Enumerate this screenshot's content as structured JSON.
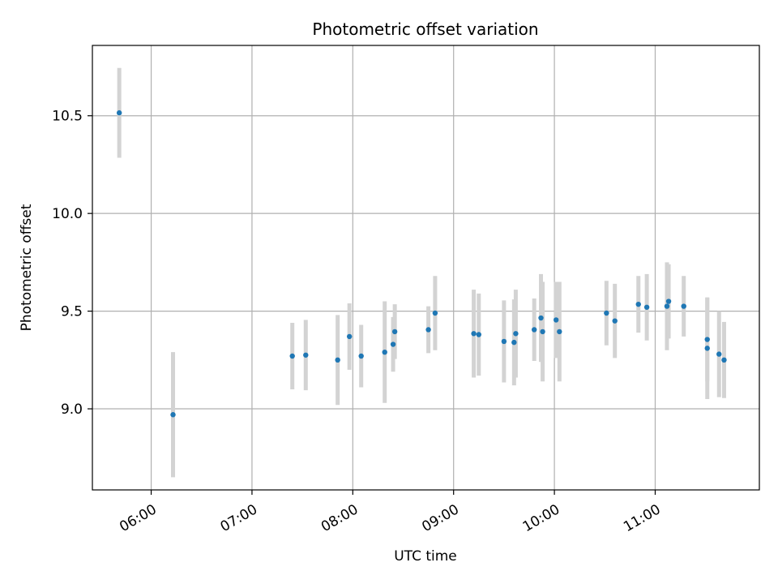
{
  "chart_data": {
    "type": "scatter",
    "title": "Photometric offset variation",
    "xlabel": "UTC time",
    "ylabel": "Photometric offset",
    "x_axis": {
      "type": "time",
      "min": "05:25",
      "max": "12:02",
      "ticks": [
        "06:00",
        "07:00",
        "08:00",
        "09:00",
        "10:00",
        "11:00"
      ]
    },
    "y_axis": {
      "min": 8.585,
      "max": 10.86,
      "ticks": [
        9.0,
        9.5,
        10.0,
        10.5
      ],
      "tick_labels": [
        "9.0",
        "9.5",
        "10.0",
        "10.5"
      ]
    },
    "grid": true,
    "marker_color": "#1f77b4",
    "errorbar_color": "#d3d3d3",
    "points": [
      {
        "x": "05:41",
        "y": 10.515,
        "err": 0.23
      },
      {
        "x": "06:13",
        "y": 8.97,
        "err": 0.32
      },
      {
        "x": "07:24",
        "y": 9.27,
        "err": 0.17
      },
      {
        "x": "07:32",
        "y": 9.275,
        "err": 0.18
      },
      {
        "x": "07:51",
        "y": 9.25,
        "err": 0.23
      },
      {
        "x": "07:58",
        "y": 9.37,
        "err": 0.17
      },
      {
        "x": "08:05",
        "y": 9.27,
        "err": 0.16
      },
      {
        "x": "08:19",
        "y": 9.29,
        "err": 0.26
      },
      {
        "x": "08:24",
        "y": 9.33,
        "err": 0.14
      },
      {
        "x": "08:25",
        "y": 9.395,
        "err": 0.14
      },
      {
        "x": "08:45",
        "y": 9.405,
        "err": 0.12
      },
      {
        "x": "08:49",
        "y": 9.49,
        "err": 0.19
      },
      {
        "x": "09:12",
        "y": 9.385,
        "err": 0.225
      },
      {
        "x": "09:15",
        "y": 9.38,
        "err": 0.21
      },
      {
        "x": "09:30",
        "y": 9.345,
        "err": 0.21
      },
      {
        "x": "09:36",
        "y": 9.34,
        "err": 0.22
      },
      {
        "x": "09:37",
        "y": 9.385,
        "err": 0.225
      },
      {
        "x": "09:48",
        "y": 9.405,
        "err": 0.16
      },
      {
        "x": "09:52",
        "y": 9.465,
        "err": 0.225
      },
      {
        "x": "09:53",
        "y": 9.395,
        "err": 0.255
      },
      {
        "x": "10:01",
        "y": 9.455,
        "err": 0.195
      },
      {
        "x": "10:03",
        "y": 9.395,
        "err": 0.255
      },
      {
        "x": "10:31",
        "y": 9.49,
        "err": 0.165
      },
      {
        "x": "10:36",
        "y": 9.45,
        "err": 0.19
      },
      {
        "x": "10:50",
        "y": 9.535,
        "err": 0.145
      },
      {
        "x": "10:55",
        "y": 9.52,
        "err": 0.17
      },
      {
        "x": "11:07",
        "y": 9.525,
        "err": 0.225
      },
      {
        "x": "11:08",
        "y": 9.55,
        "err": 0.19
      },
      {
        "x": "11:17",
        "y": 9.525,
        "err": 0.155
      },
      {
        "x": "11:31",
        "y": 9.355,
        "err": 0.215
      },
      {
        "x": "11:31",
        "y": 9.31,
        "err": 0.26
      },
      {
        "x": "11:38",
        "y": 9.28,
        "err": 0.22
      },
      {
        "x": "11:41",
        "y": 9.25,
        "err": 0.195
      }
    ]
  }
}
